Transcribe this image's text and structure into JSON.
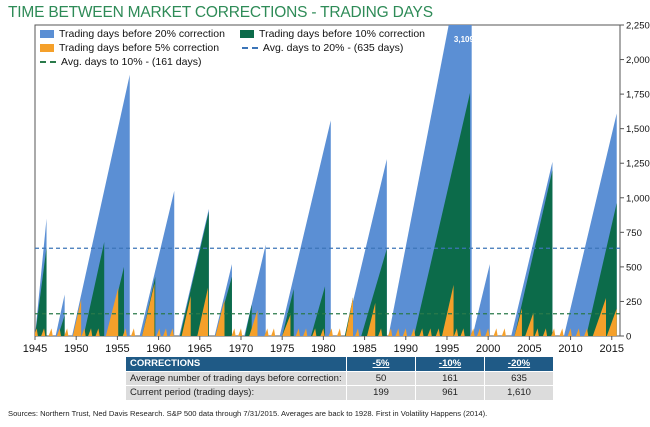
{
  "title": "TIME BETWEEN MARKET CORRECTIONS - TRADING DAYS",
  "colors": {
    "blue": "#5b8fd4",
    "green": "#0c6b4a",
    "orange": "#f5a02a",
    "blue_line": "#3c75b8",
    "green_line": "#2a7a4a",
    "title": "#2e8b57",
    "table_header": "#1f5a86"
  },
  "legend": [
    {
      "label": "Trading days before 20% correction",
      "kind": "swatch",
      "color": "#5b8fd4"
    },
    {
      "label": "Trading days before 10% correction",
      "kind": "swatch",
      "color": "#0c6b4a"
    },
    {
      "label": "Trading days before 5% correction",
      "kind": "swatch",
      "color": "#f5a02a"
    },
    {
      "label": "Avg. days to 20% - (635 days)",
      "kind": "dash",
      "color": "#3c75b8"
    },
    {
      "label": "Avg. days to 10% - (161 days)",
      "kind": "dash",
      "color": "#2a7a4a"
    }
  ],
  "chart_data": {
    "type": "area",
    "xlim": [
      1945,
      2016
    ],
    "ylim": [
      0,
      2250
    ],
    "x_ticks": [
      1945,
      1950,
      1955,
      1960,
      1965,
      1970,
      1975,
      1980,
      1985,
      1990,
      1995,
      2000,
      2005,
      2010,
      2015
    ],
    "y_ticks": [
      0,
      250,
      500,
      750,
      1000,
      1250,
      1500,
      1750,
      2000,
      2250
    ],
    "y_tick_labels": [
      "0",
      "250",
      "500",
      "750",
      "1,000",
      "1,250",
      "1,500",
      "1,750",
      "2,000",
      "2,250"
    ],
    "annotation": "3,109 days",
    "series": [
      {
        "name": "Trading days before 20% correction",
        "color": "#5b8fd4",
        "segments": [
          {
            "start": 1945,
            "end": 1946.4,
            "peak": 850
          },
          {
            "start": 1947.5,
            "end": 1948.6,
            "peak": 300
          },
          {
            "start": 1949.5,
            "end": 1956.5,
            "peak": 1890
          },
          {
            "start": 1957.7,
            "end": 1961.9,
            "peak": 1050
          },
          {
            "start": 1962.5,
            "end": 1966.1,
            "peak": 920
          },
          {
            "start": 1966.8,
            "end": 1968.9,
            "peak": 520
          },
          {
            "start": 1970.4,
            "end": 1973.0,
            "peak": 660
          },
          {
            "start": 1974.7,
            "end": 1980.9,
            "peak": 1560
          },
          {
            "start": 1982.6,
            "end": 1987.7,
            "peak": 1280
          },
          {
            "start": 1987.9,
            "end": 1998.0,
            "peak": 3109
          },
          {
            "start": 1998.1,
            "end": 2000.2,
            "peak": 520
          },
          {
            "start": 2002.8,
            "end": 2007.8,
            "peak": 1260
          },
          {
            "start": 2009.2,
            "end": 2015.6,
            "peak": 1610
          }
        ]
      },
      {
        "name": "Trading days before 10% correction",
        "color": "#0c6b4a",
        "segments": [
          {
            "start": 1945,
            "end": 1946.4,
            "peak": 640
          },
          {
            "start": 1947.8,
            "end": 1948.6,
            "peak": 150
          },
          {
            "start": 1950.9,
            "end": 1953.4,
            "peak": 680
          },
          {
            "start": 1953.8,
            "end": 1955.8,
            "peak": 500
          },
          {
            "start": 1958.0,
            "end": 1959.6,
            "peak": 430
          },
          {
            "start": 1962.6,
            "end": 1966.1,
            "peak": 900
          },
          {
            "start": 1966.9,
            "end": 1968.9,
            "peak": 430
          },
          {
            "start": 1970.5,
            "end": 1971.3,
            "peak": 230
          },
          {
            "start": 1975.0,
            "end": 1976.4,
            "peak": 340
          },
          {
            "start": 1978.5,
            "end": 1980.2,
            "peak": 360
          },
          {
            "start": 1982.6,
            "end": 1983.6,
            "peak": 280
          },
          {
            "start": 1984.6,
            "end": 1987.7,
            "peak": 630
          },
          {
            "start": 1991.0,
            "end": 1997.8,
            "peak": 1760
          },
          {
            "start": 2003.2,
            "end": 2007.8,
            "peak": 1200
          },
          {
            "start": 2011.9,
            "end": 2015.6,
            "peak": 961
          }
        ]
      },
      {
        "name": "Trading days before 5% correction",
        "color": "#f5a02a",
        "segments": [
          {
            "start": 1949.6,
            "end": 1950.6,
            "peak": 265
          },
          {
            "start": 1953.6,
            "end": 1955.1,
            "peak": 350
          },
          {
            "start": 1958.0,
            "end": 1959.5,
            "peak": 380
          },
          {
            "start": 1962.8,
            "end": 1963.9,
            "peak": 290
          },
          {
            "start": 1964.7,
            "end": 1966.0,
            "peak": 350
          },
          {
            "start": 1966.9,
            "end": 1968.0,
            "peak": 260
          },
          {
            "start": 1971.0,
            "end": 1972.0,
            "peak": 185
          },
          {
            "start": 1975.0,
            "end": 1976.0,
            "peak": 155
          },
          {
            "start": 1982.7,
            "end": 1983.6,
            "peak": 280
          },
          {
            "start": 1985.3,
            "end": 1986.3,
            "peak": 240
          },
          {
            "start": 1994.4,
            "end": 1995.8,
            "peak": 370
          },
          {
            "start": 2003.2,
            "end": 2004.1,
            "peak": 200
          },
          {
            "start": 2004.5,
            "end": 2005.5,
            "peak": 170
          },
          {
            "start": 2012.7,
            "end": 2014.3,
            "peak": 275
          },
          {
            "start": 2014.4,
            "end": 2015.6,
            "peak": 199
          }
        ],
        "baseline_ticks": [
          1945.2,
          1946.1,
          1947.0,
          1948.0,
          1948.9,
          1951.0,
          1951.8,
          1952.7,
          1956.0,
          1957.0,
          1960.1,
          1960.9,
          1961.7,
          1969.2,
          1970.0,
          1973.2,
          1974.0,
          1977.0,
          1977.9,
          1979.0,
          1980.0,
          1981.0,
          1982.0,
          1984.2,
          1987.0,
          1988.2,
          1989.1,
          1990.0,
          1991.0,
          1992.0,
          1993.0,
          1994.0,
          1996.2,
          1997.0,
          1998.2,
          1999.0,
          2000.0,
          2001.0,
          2002.0,
          2006.0,
          2007.0,
          2008.0,
          2009.0,
          2010.0,
          2011.0,
          2012.0
        ]
      },
      {
        "name": "Avg. days to 20% - (635 days)",
        "type": "hline",
        "value": 635,
        "color": "#3c75b8"
      },
      {
        "name": "Avg. days to 10% - (161 days)",
        "type": "hline",
        "value": 161,
        "color": "#2a7a4a"
      }
    ]
  },
  "table": {
    "header": [
      "CORRECTIONS",
      "-5%",
      "-10%",
      "-20%"
    ],
    "rows": [
      [
        "Average number of trading days before correction:",
        "50",
        "161",
        "635"
      ],
      [
        "Current period (trading days):",
        "199",
        "961",
        "1,610"
      ]
    ]
  },
  "source": "Sources: Northern Trust, Ned Davis Research. S&P 500 data through 7/31/2015. Averages are back to 1928. First in Volatility Happens (2014)."
}
